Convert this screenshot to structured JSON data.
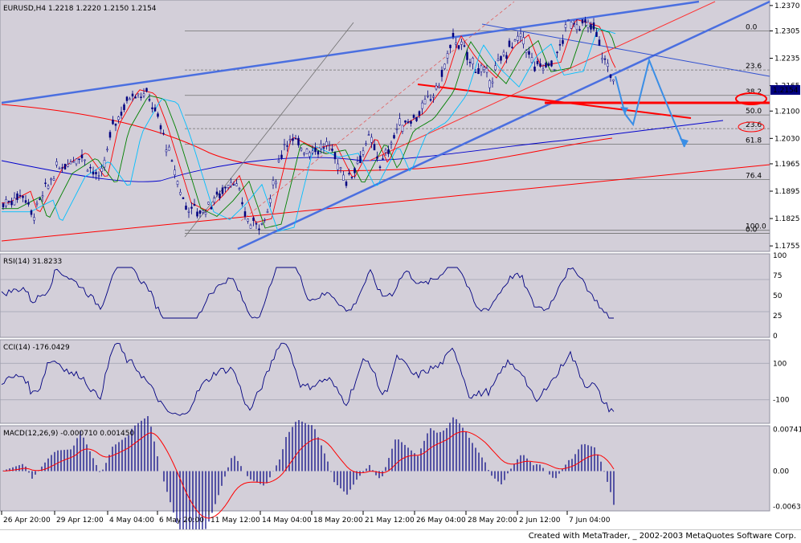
{
  "chart_data": [
    {
      "type": "candlestick",
      "title": "EURUSD,H4  1.2218 1.2220 1.2150 1.2154",
      "symbol": "EURUSD",
      "timeframe": "H4",
      "ohlc": {
        "open": 1.2218,
        "high": 1.222,
        "low": 1.215,
        "close": 1.2154
      },
      "current_price": "1.2154",
      "x_tick_labels": [
        "26 Apr 20:00",
        "29 Apr 12:00",
        "4 May 04:00",
        "6 May 20:00",
        "11 May 12:00",
        "14 May 04:00",
        "18 May 20:00",
        "21 May 12:00",
        "26 May 04:00",
        "28 May 20:00",
        "2 Jun 12:00",
        "7 Jun 04:00"
      ],
      "y_tick_labels": [
        "1.2370",
        "1.2305",
        "1.2235",
        "1.2165",
        "1.2100",
        "1.2030",
        "1.1965",
        "1.1895",
        "1.1825",
        "1.1755"
      ],
      "ylim": [
        1.1745,
        1.238
      ],
      "fibonacci_levels": [
        {
          "label": "0.0",
          "price": 1.2305
        },
        {
          "label": "23.6",
          "price": 1.2205
        },
        {
          "label": "38.2",
          "price": 1.214
        },
        {
          "label": "50.0",
          "price": 1.209
        },
        {
          "label": "23.6",
          "price": 1.2055
        },
        {
          "label": "61.8",
          "price": 1.2015
        },
        {
          "label": "76.4",
          "price": 1.1925
        },
        {
          "label": "100.0",
          "price": 1.1795
        },
        {
          "label": "0.0",
          "price": 1.1787
        }
      ],
      "moving_averages": [
        "red",
        "green",
        "cyan",
        "blue",
        "red-long"
      ],
      "grid": false
    },
    {
      "type": "line",
      "title": "RSI(14) 31.8233",
      "indicator": "RSI(14)",
      "value": "31.8233",
      "y_tick_labels": [
        "100",
        "75",
        "50",
        "25",
        "0"
      ],
      "ylim": [
        0,
        100
      ],
      "levels": [
        30,
        70
      ]
    },
    {
      "type": "line",
      "title": "CCI(14) -176.0429",
      "indicator": "CCI(14)",
      "value": "-176.0429",
      "y_tick_labels": [
        "100",
        "-100"
      ],
      "ylim": [
        -220,
        220
      ]
    },
    {
      "type": "bar",
      "title": "MACD(12,26,9) -0.000710 0.001450",
      "indicator": "MACD(12,26,9)",
      "values_text": [
        "-0.000710",
        "0.001450"
      ],
      "y_tick_labels": [
        "0.00741",
        "0.00",
        "-0.00633"
      ],
      "ylim": [
        -0.0068,
        0.0078
      ]
    }
  ],
  "colors": {
    "chart_bg": "#d3cfd9",
    "axis_bg": "#ffffff",
    "candle": "#000080",
    "ma_fast": "#ff0000",
    "ma_mid": "#008000",
    "ma_slow": "#00bfff",
    "ma_blue": "#0000ff",
    "trendline": "#4a6fe0",
    "red_line": "#ff0000",
    "arrow": "#3a8ee6"
  },
  "footer_text": "Created with MetaTrader, _ 2002-2003 MetaQuotes Software Corp."
}
